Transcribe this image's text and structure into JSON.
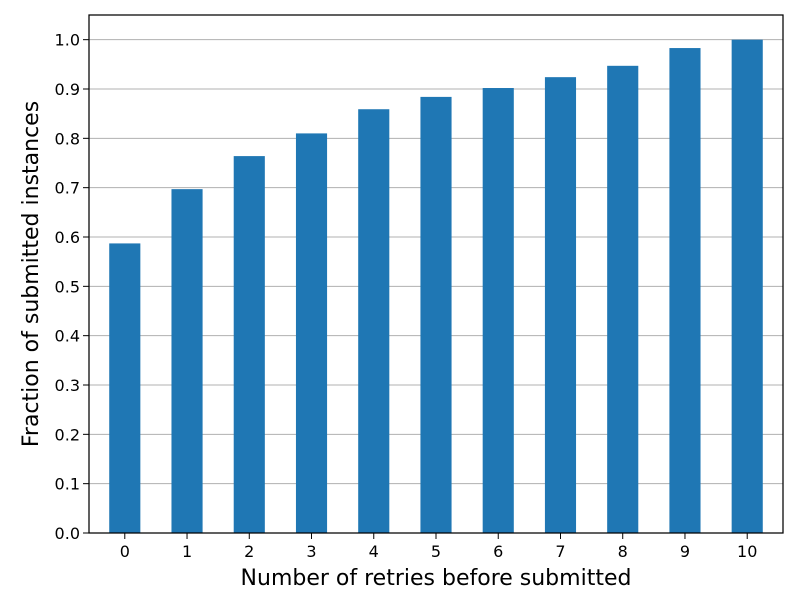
{
  "chart_data": {
    "type": "bar",
    "title": "",
    "xlabel": "Number of retries before submitted",
    "ylabel": "Fraction of submitted instances",
    "categories": [
      "0",
      "1",
      "2",
      "3",
      "4",
      "5",
      "6",
      "7",
      "8",
      "9",
      "10"
    ],
    "values": [
      0.587,
      0.697,
      0.764,
      0.81,
      0.859,
      0.884,
      0.902,
      0.924,
      0.947,
      0.983,
      1.0
    ],
    "ylim": [
      0,
      1.05
    ],
    "yticks": [
      "0.0",
      "0.1",
      "0.2",
      "0.3",
      "0.4",
      "0.5",
      "0.6",
      "0.7",
      "0.8",
      "0.9",
      "1.0"
    ],
    "grid": "horizontal",
    "legend": "none",
    "bar_color": "#1f77b4",
    "grid_color": "#b0b0b0"
  }
}
